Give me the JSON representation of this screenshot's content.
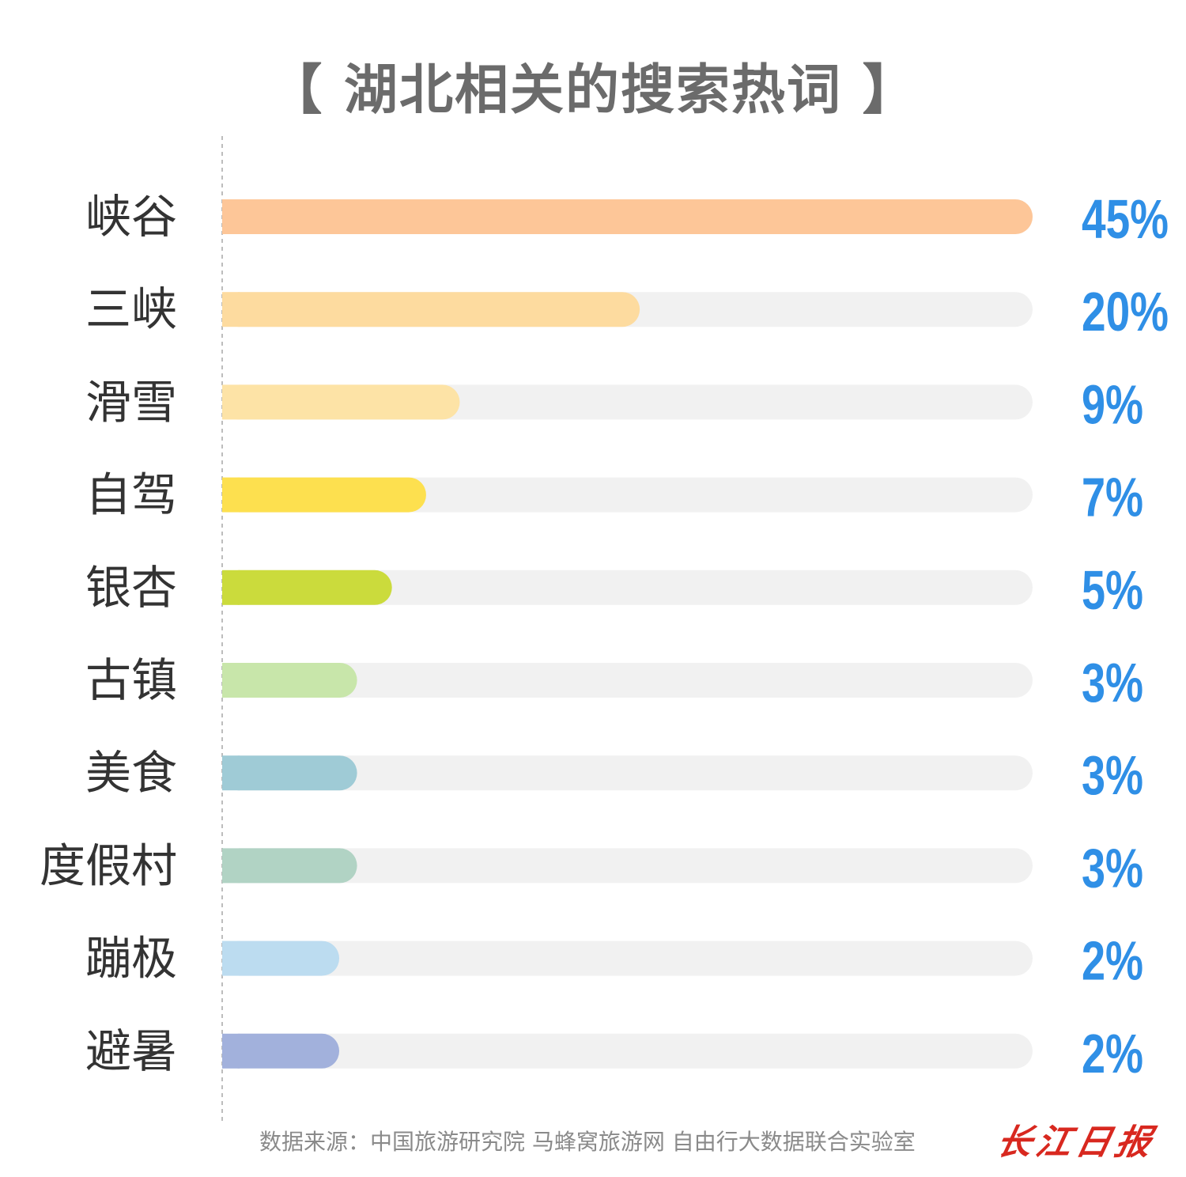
{
  "chart_data": {
    "type": "bar",
    "orientation": "horizontal",
    "title": "【 湖北相关的搜索热词 】",
    "categories": [
      "峡谷",
      "三峡",
      "滑雪",
      "自驾",
      "银杏",
      "古镇",
      "美食",
      "度假村",
      "蹦极",
      "避暑"
    ],
    "values": [
      45,
      20,
      9,
      7,
      5,
      3,
      3,
      3,
      2,
      2
    ],
    "value_labels": [
      "45%",
      "20%",
      "9%",
      "7%",
      "5%",
      "3%",
      "3%",
      "3%",
      "2%",
      "2%"
    ],
    "bar_colors": [
      "#fdc698",
      "#fddb9f",
      "#fde3a6",
      "#fde04f",
      "#cbdb3c",
      "#c8e6aa",
      "#9fcbd6",
      "#b1d3c4",
      "#bcdcf0",
      "#a2b1dc"
    ],
    "track_color": "#f1f1f1",
    "label_color": "#333333",
    "value_color": "#2f8fe6",
    "grid": false,
    "legend": "none"
  },
  "footer": {
    "source": "数据来源：中国旅游研究院 马蜂窝旅游网 自由行大数据联合实验室",
    "logo": "长江日报"
  }
}
